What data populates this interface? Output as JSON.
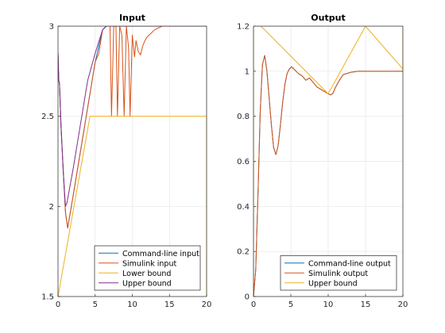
{
  "chart_data": [
    {
      "type": "line",
      "title": "Input",
      "xlabel": "",
      "ylabel": "",
      "xlim": [
        0,
        20
      ],
      "ylim": [
        1.5,
        3
      ],
      "xticks": [
        "0",
        "5",
        "10",
        "15",
        "20"
      ],
      "yticks": [
        "1.5",
        "2",
        "2.5",
        "3"
      ],
      "grid": true,
      "legend_position": "bottom-right",
      "series": [
        {
          "name": "Command-line input",
          "color": "#0072bd",
          "x": [
            0,
            0.1,
            0.2,
            0.4,
            0.7,
            1.0,
            1.3,
            2.0,
            3.0,
            4.0,
            5.0,
            6.0,
            6.5,
            7.0,
            7.4,
            7.8,
            8.2,
            8.6,
            9.0,
            9.4,
            9.8,
            10.2,
            10.6,
            11.0,
            11.6,
            12.0,
            13.0,
            14.0,
            20
          ],
          "y": [
            2.85,
            2.7,
            2.68,
            2.45,
            2.2,
            1.97,
            1.88,
            2.05,
            2.3,
            2.55,
            2.8,
            2.98,
            3.0,
            3.0,
            3.0,
            3.0,
            3.0,
            3.0,
            3.0,
            3.0,
            3.0,
            3.0,
            3.0,
            3.0,
            3.0,
            3.0,
            3.0,
            3.0,
            3.0
          ]
        },
        {
          "name": "Simulink input",
          "color": "#d95319",
          "x": [
            0,
            0.1,
            0.2,
            0.4,
            0.7,
            1.0,
            1.3,
            2.0,
            3.0,
            4.0,
            5.0,
            5.5,
            6.0,
            6.5,
            7.0,
            7.2,
            7.5,
            7.8,
            8.0,
            8.3,
            8.6,
            8.9,
            9.2,
            9.5,
            9.7,
            10.0,
            10.3,
            10.5,
            10.8,
            11.1,
            11.4,
            11.7,
            12.0,
            12.5,
            13.0,
            14.0,
            20
          ],
          "y": [
            2.85,
            2.7,
            2.68,
            2.45,
            2.2,
            1.97,
            1.88,
            2.05,
            2.3,
            2.55,
            2.8,
            2.85,
            2.98,
            3.0,
            3.0,
            2.5,
            3.0,
            3.0,
            2.5,
            3.0,
            2.95,
            2.5,
            3.0,
            2.88,
            2.5,
            2.95,
            2.83,
            2.92,
            2.86,
            2.84,
            2.89,
            2.92,
            2.94,
            2.96,
            2.98,
            3.0,
            3.0
          ]
        },
        {
          "name": "Lower bound",
          "color": "#edb120",
          "x": [
            0,
            4.3,
            20,
            20
          ],
          "y": [
            1.5,
            2.5,
            2.5,
            1.5
          ]
        },
        {
          "name": "Upper bound",
          "color": "#7e2f8e",
          "x": [
            0,
            0.1,
            0.2,
            0.4,
            0.7,
            1.0,
            1.2,
            2.0,
            3.0,
            4.0,
            5.0,
            6.0,
            6.5,
            8.0,
            10.0,
            12.0,
            13.0,
            14.0,
            20
          ],
          "y": [
            2.85,
            2.7,
            2.68,
            2.45,
            2.2,
            2.0,
            2.02,
            2.2,
            2.45,
            2.7,
            2.85,
            2.98,
            3.0,
            3.0,
            3.0,
            3.0,
            3.0,
            3.0,
            3.0
          ]
        }
      ]
    },
    {
      "type": "line",
      "title": "Output",
      "xlabel": "",
      "ylabel": "",
      "xlim": [
        0,
        20
      ],
      "ylim": [
        0,
        1.2
      ],
      "xticks": [
        "0",
        "5",
        "10",
        "15",
        "20"
      ],
      "yticks": [
        "0",
        "0.2",
        "0.4",
        "0.6",
        "0.8",
        "1",
        "1.2"
      ],
      "grid": true,
      "legend_position": "bottom-right",
      "series": [
        {
          "name": "Command-line output",
          "color": "#0072bd",
          "x": [
            0,
            0.3,
            0.6,
            0.9,
            1.2,
            1.5,
            1.8,
            2.1,
            2.4,
            2.7,
            3.0,
            3.3,
            3.6,
            3.9,
            4.2,
            4.5,
            4.8,
            5.1,
            5.4,
            5.7,
            6.0,
            6.5,
            7.0,
            7.5,
            8.0,
            8.5,
            9.0,
            9.5,
            10.0,
            10.3,
            10.6,
            11.0,
            11.5,
            12.0,
            13.0,
            14.0,
            15.0,
            16.0,
            17.0,
            18.0,
            19.0,
            20.0
          ],
          "y": [
            0,
            0.12,
            0.45,
            0.82,
            1.03,
            1.07,
            1.0,
            0.88,
            0.76,
            0.66,
            0.63,
            0.67,
            0.76,
            0.86,
            0.94,
            0.99,
            1.01,
            1.02,
            1.01,
            1.0,
            0.99,
            0.98,
            0.96,
            0.97,
            0.95,
            0.93,
            0.92,
            0.91,
            0.9,
            0.895,
            0.9,
            0.93,
            0.96,
            0.985,
            0.995,
            1.0,
            1.0,
            1.0,
            1.0,
            1.0,
            1.0,
            1.0
          ]
        },
        {
          "name": "Simulink output",
          "color": "#d95319",
          "x": [
            0,
            0.3,
            0.6,
            0.9,
            1.2,
            1.5,
            1.8,
            2.1,
            2.4,
            2.7,
            3.0,
            3.3,
            3.6,
            3.9,
            4.2,
            4.5,
            4.8,
            5.1,
            5.4,
            5.7,
            6.0,
            6.5,
            7.0,
            7.5,
            8.0,
            8.5,
            9.0,
            9.5,
            10.0,
            10.3,
            10.6,
            11.0,
            11.5,
            12.0,
            13.0,
            14.0,
            15.0,
            16.0,
            17.0,
            18.0,
            19.0,
            20.0
          ],
          "y": [
            0,
            0.12,
            0.45,
            0.82,
            1.03,
            1.07,
            1.0,
            0.88,
            0.76,
            0.66,
            0.63,
            0.67,
            0.76,
            0.86,
            0.94,
            0.99,
            1.01,
            1.02,
            1.01,
            1.0,
            0.99,
            0.98,
            0.96,
            0.97,
            0.95,
            0.93,
            0.92,
            0.91,
            0.9,
            0.895,
            0.9,
            0.93,
            0.96,
            0.985,
            0.995,
            1.0,
            1.0,
            1.0,
            1.0,
            1.0,
            1.0,
            1.0
          ]
        },
        {
          "name": "Upper bound",
          "color": "#edb120",
          "x": [
            0,
            0,
            1.0,
            10.0,
            15.0,
            20.0,
            20.0
          ],
          "y": [
            0,
            1.2,
            1.2,
            0.9,
            1.2,
            1.01,
            1.2
          ]
        }
      ]
    }
  ]
}
